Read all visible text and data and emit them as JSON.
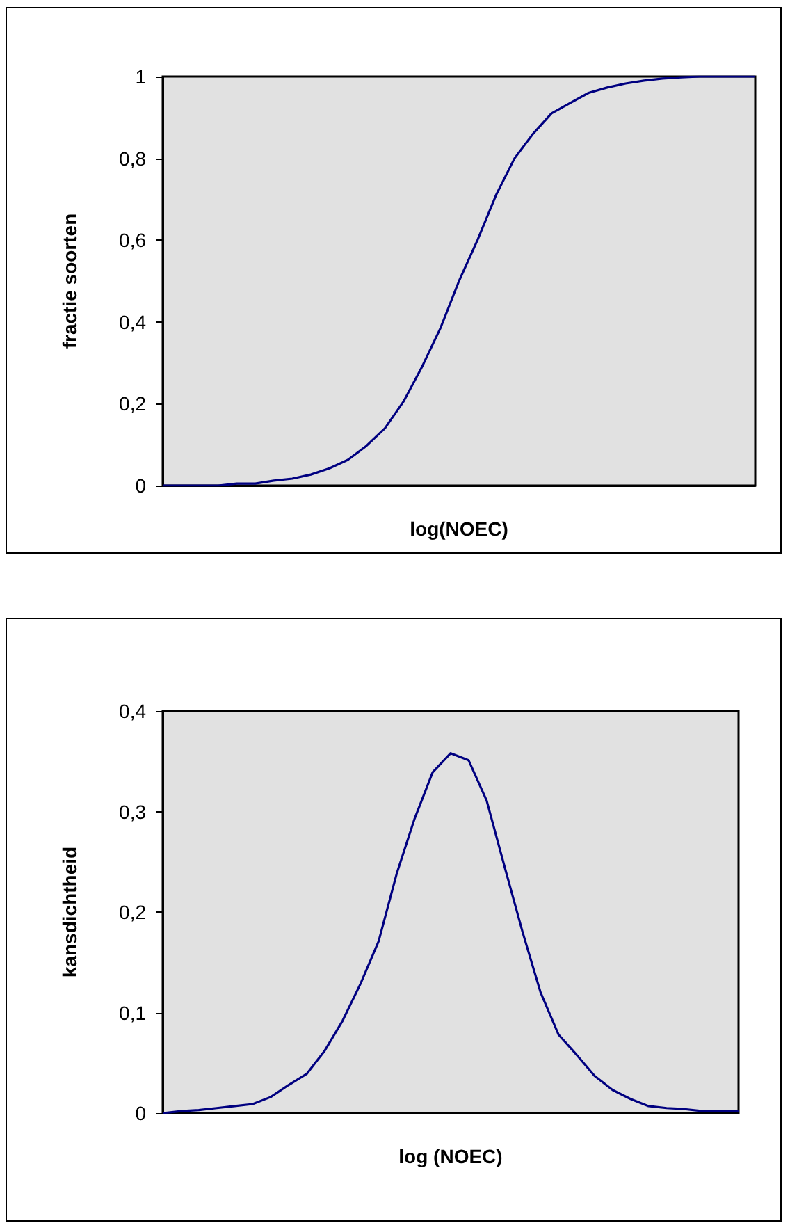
{
  "chart_data": [
    {
      "type": "line",
      "xlabel": "log(NOEC)",
      "ylabel": "fractie soorten",
      "categories": [
        null,
        null,
        null,
        null,
        null,
        null,
        null,
        null,
        null,
        null,
        null,
        null,
        null,
        null,
        null,
        null,
        null,
        null,
        null,
        null,
        null,
        null,
        null,
        null,
        null,
        null,
        null,
        null,
        null,
        null,
        null,
        null,
        null
      ],
      "series": [
        {
          "color": "#000080",
          "values": [
            0,
            0,
            0,
            0,
            0.005,
            0.005,
            0.012,
            0.017,
            0.027,
            0.042,
            0.063,
            0.097,
            0.14,
            0.205,
            0.29,
            0.385,
            0.5,
            0.6,
            0.71,
            0.8,
            0.86,
            0.91,
            0.935,
            0.96,
            0.973,
            0.983,
            0.99,
            0.995,
            0.998,
            1,
            1,
            1,
            1
          ]
        }
      ],
      "ylim": [
        0,
        1
      ],
      "yticks": [
        {
          "value": 0,
          "label": "0"
        },
        {
          "value": 0.2,
          "label": "0,2"
        },
        {
          "value": 0.4,
          "label": "0,4"
        },
        {
          "value": 0.6,
          "label": "0,6"
        },
        {
          "value": 0.8,
          "label": "0,8"
        },
        {
          "value": 1,
          "label": "1"
        }
      ],
      "tick_labels": "y",
      "grid": false,
      "marker": "none"
    },
    {
      "type": "line",
      "xlabel": "log (NOEC)",
      "ylabel": "kansdichtheid",
      "categories": [
        null,
        null,
        null,
        null,
        null,
        null,
        null,
        null,
        null,
        null,
        null,
        null,
        null,
        null,
        null,
        null,
        null,
        null,
        null,
        null,
        null,
        null,
        null,
        null,
        null,
        null,
        null,
        null,
        null,
        null,
        null,
        null,
        null
      ],
      "series": [
        {
          "color": "#000080",
          "values": [
            0,
            0.002,
            0.003,
            0.005,
            0.007,
            0.009,
            0.016,
            0.028,
            0.039,
            0.062,
            0.092,
            0.129,
            0.171,
            0.238,
            0.293,
            0.339,
            0.358,
            0.351,
            0.311,
            0.245,
            0.18,
            0.12,
            0.078,
            0.058,
            0.037,
            0.023,
            0.014,
            0.007,
            0.005,
            0.004,
            0.002,
            0.002,
            0.002
          ]
        }
      ],
      "ylim": [
        0,
        0.4
      ],
      "yticks": [
        {
          "value": 0,
          "label": "0"
        },
        {
          "value": 0.1,
          "label": "0,1"
        },
        {
          "value": 0.2,
          "label": "0,2"
        },
        {
          "value": 0.3,
          "label": "0,3"
        },
        {
          "value": 0.4,
          "label": "0,4"
        }
      ],
      "tick_labels": "y",
      "grid": false,
      "marker": "none"
    }
  ]
}
